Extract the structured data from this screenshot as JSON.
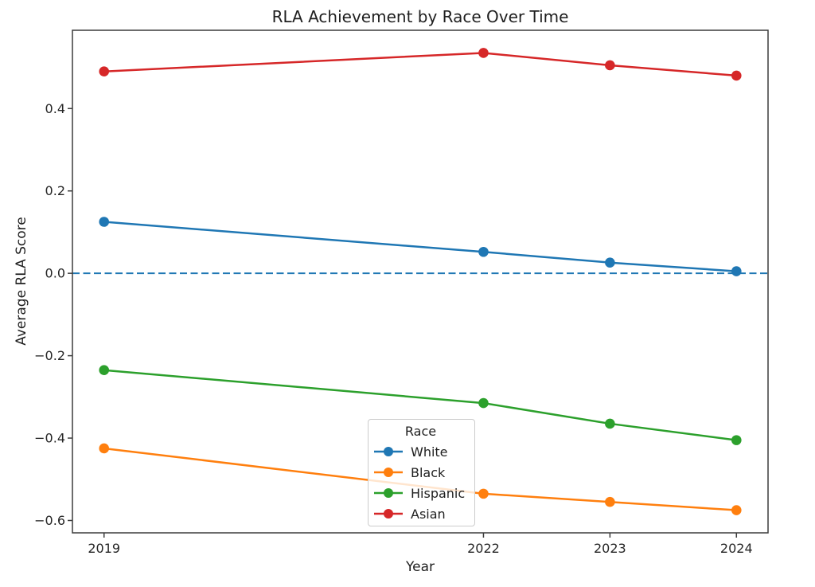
{
  "chart_data": {
    "type": "line",
    "title": "RLA Achievement by Race Over Time",
    "xlabel": "Year",
    "ylabel": "Average RLA Score",
    "x": [
      2019,
      2022,
      2023,
      2024
    ],
    "series": [
      {
        "name": "White",
        "color": "#1f77b4",
        "values": [
          0.125,
          0.052,
          0.026,
          0.005
        ]
      },
      {
        "name": "Black",
        "color": "#ff7f0e",
        "values": [
          -0.425,
          -0.535,
          -0.555,
          -0.575
        ]
      },
      {
        "name": "Hispanic",
        "color": "#2ca02c",
        "values": [
          -0.235,
          -0.315,
          -0.365,
          -0.405
        ]
      },
      {
        "name": "Asian",
        "color": "#d62728",
        "values": [
          0.49,
          0.535,
          0.505,
          0.48
        ]
      }
    ],
    "reference_line": {
      "y": 0.0,
      "style": "dashed",
      "color": "#1f77b4"
    },
    "legend": {
      "title": "Race",
      "position": "lower center"
    },
    "x_ticks": {
      "values": [
        2019,
        2022,
        2023,
        2024
      ],
      "labels": [
        "2019",
        "2022",
        "2023",
        "2024"
      ]
    },
    "y_ticks": {
      "values": [
        0.4,
        0.2,
        0.0,
        -0.2,
        -0.4,
        -0.6
      ],
      "labels": [
        "0.4",
        "0.2",
        "0.0",
        "−0.2",
        "−0.4",
        "−0.6"
      ]
    },
    "xlim": [
      2018.75,
      2024.25
    ],
    "ylim": [
      -0.63,
      0.59
    ],
    "grid": false,
    "axis_color": "#3c3c3c",
    "text_color": "#262626"
  }
}
